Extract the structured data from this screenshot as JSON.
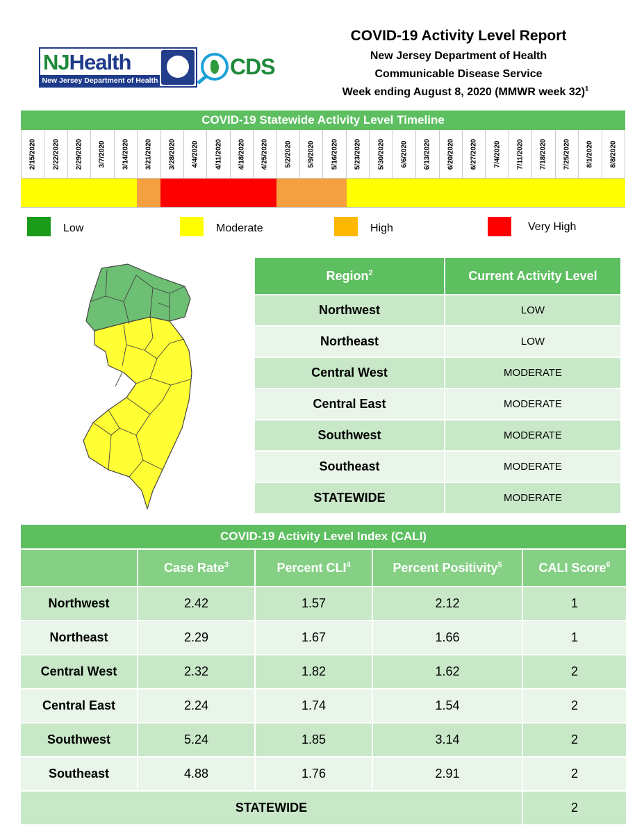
{
  "header": {
    "title": "COVID-19 Activity Level Report",
    "line1": "New Jersey Department of Health",
    "line2": "Communicable Disease Service",
    "week": "Week ending August 8, 2020 (MMWR week 32)",
    "week_note": "1",
    "logo_nj_text_a": "NJ",
    "logo_nj_text_b": "Health",
    "logo_nj_bar": "New Jersey Department of Health",
    "logo_cds_text": "CDS"
  },
  "timeline": {
    "title": "COVID-19 Statewide Activity Level Timeline",
    "dates": [
      "2/15/2020",
      "2/22/2020",
      "2/29/2020",
      "3/7/2020",
      "3/14/2020",
      "3/21/2020",
      "3/28/2020",
      "4/4/2020",
      "4/11/2020",
      "4/18/2020",
      "4/25/2020",
      "5/2/2020",
      "5/9/2020",
      "5/16/2020",
      "5/23/2020",
      "5/30/2020",
      "6/6/2020",
      "6/13/2020",
      "6/20/2020",
      "6/27/2020",
      "7/4/2020",
      "7/11/2020",
      "7/18/2020",
      "7/25/2020",
      "8/1/2020",
      "8/8/2020"
    ],
    "levels": [
      "moderate",
      "moderate",
      "moderate",
      "moderate",
      "moderate",
      "high",
      "very_high",
      "very_high",
      "very_high",
      "very_high",
      "very_high",
      "high",
      "high",
      "high",
      "moderate",
      "moderate",
      "moderate",
      "moderate",
      "moderate",
      "moderate",
      "moderate",
      "moderate",
      "moderate",
      "moderate",
      "moderate",
      "moderate"
    ],
    "colors": {
      "low": "#1a9c1a",
      "moderate": "#ffff00",
      "high": "#f5a040",
      "very_high": "#ff0000"
    }
  },
  "legend": [
    {
      "key": "low",
      "label": "Low",
      "color": "#1a9c1a"
    },
    {
      "key": "moderate",
      "label": "Moderate",
      "color": "#ffff00"
    },
    {
      "key": "high",
      "label": "High",
      "color": "#ffb800"
    },
    {
      "key": "very_high",
      "label": "Very High",
      "color": "#ff0000"
    }
  ],
  "map": {
    "north_color": "#6dbf73",
    "south_color": "#ffff33"
  },
  "region_table": {
    "col1": "Region",
    "col1_note": "2",
    "col2": "Current Activity Level",
    "rows": [
      {
        "region": "Northwest",
        "level": "LOW"
      },
      {
        "region": "Northeast",
        "level": "LOW"
      },
      {
        "region": "Central West",
        "level": "MODERATE"
      },
      {
        "region": "Central East",
        "level": "MODERATE"
      },
      {
        "region": "Southwest",
        "level": "MODERATE"
      },
      {
        "region": "Southeast",
        "level": "MODERATE"
      },
      {
        "region": "STATEWIDE",
        "level": "MODERATE"
      }
    ]
  },
  "cali_table": {
    "title": "COVID-19 Activity Level Index (CALI)",
    "headers": [
      {
        "label": "Case Rate",
        "note": "3"
      },
      {
        "label": "Percent CLI",
        "note": "4"
      },
      {
        "label": "Percent Positivity",
        "note": "5"
      },
      {
        "label": "CALI Score",
        "note": "6"
      }
    ],
    "rows": [
      {
        "region": "Northwest",
        "case_rate": "2.42",
        "cli": "1.57",
        "positivity": "2.12",
        "score": "1"
      },
      {
        "region": "Northeast",
        "case_rate": "2.29",
        "cli": "1.67",
        "positivity": "1.66",
        "score": "1"
      },
      {
        "region": "Central West",
        "case_rate": "2.32",
        "cli": "1.82",
        "positivity": "1.62",
        "score": "2"
      },
      {
        "region": "Central East",
        "case_rate": "2.24",
        "cli": "1.74",
        "positivity": "1.54",
        "score": "2"
      },
      {
        "region": "Southwest",
        "case_rate": "5.24",
        "cli": "1.85",
        "positivity": "3.14",
        "score": "2"
      },
      {
        "region": "Southeast",
        "case_rate": "4.88",
        "cli": "1.76",
        "positivity": "2.91",
        "score": "2"
      }
    ],
    "statewide": {
      "label": "STATEWIDE",
      "score": "2"
    }
  }
}
